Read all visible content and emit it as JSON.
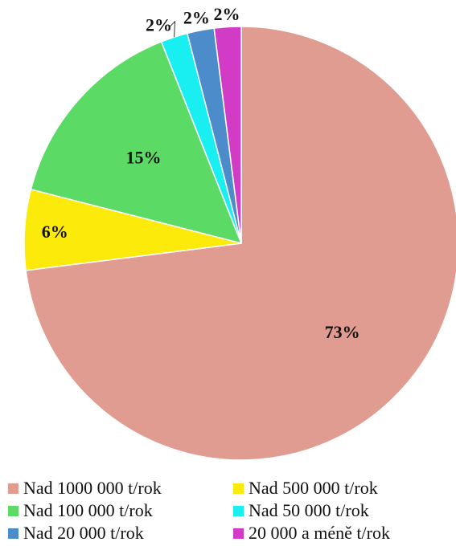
{
  "chart_data": {
    "type": "pie",
    "title": "",
    "start_angle_deg": 0,
    "direction": "clockwise",
    "legend_position": "bottom",
    "slices": [
      {
        "label": "Nad 1000 000 t/rok",
        "value": 73,
        "pct_label": "73%",
        "color": "#E09C90"
      },
      {
        "label": "Nad 500 000 t/rok",
        "value": 6,
        "pct_label": "6%",
        "color": "#FBEA0A"
      },
      {
        "label": "Nad 100 000 t/rok",
        "value": 15,
        "pct_label": "15%",
        "color": "#5BDB66"
      },
      {
        "label": "Nad 50 000 t/rok",
        "value": 2,
        "pct_label": "2%",
        "color": "#19EEF0"
      },
      {
        "label": "Nad 20 000 t/rok",
        "value": 2,
        "pct_label": "2%",
        "color": "#4D8CCB"
      },
      {
        "label": "20 000 a méně t/rok",
        "value": 2,
        "pct_label": "2%",
        "color": "#D23BC6"
      }
    ]
  }
}
